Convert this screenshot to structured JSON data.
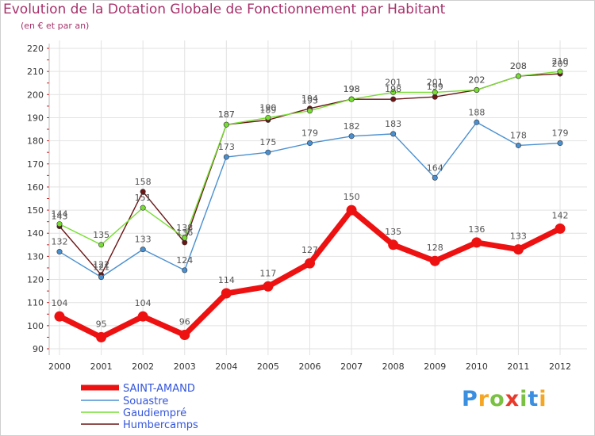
{
  "title": "Evolution de la Dotation Globale de Fonctionnement par Habitant",
  "subtitle": "(en € et par an)",
  "chart_data": {
    "type": "line",
    "x": [
      "2000",
      "2001",
      "2002",
      "2003",
      "2004",
      "2005",
      "2006",
      "2007",
      "2008",
      "2009",
      "2010",
      "2011",
      "2012"
    ],
    "ylim": [
      90,
      220
    ],
    "yticks": [
      90,
      100,
      110,
      120,
      130,
      140,
      150,
      160,
      170,
      180,
      190,
      200,
      210,
      220
    ],
    "grid": true,
    "legend_position": "bottom-left",
    "series": [
      {
        "name": "SAINT-AMAND",
        "color": "#ee1111",
        "values": [
          104,
          95,
          104,
          96,
          114,
          117,
          127,
          150,
          135,
          128,
          136,
          133,
          142
        ]
      },
      {
        "name": "Souastre",
        "color": "#4a90d0",
        "values": [
          132,
          121,
          133,
          124,
          173,
          175,
          179,
          182,
          183,
          164,
          188,
          178,
          179
        ]
      },
      {
        "name": "Gaudiempré",
        "color": "#77dd33",
        "values": [
          144,
          135,
          151,
          138,
          187,
          190,
          193,
          198,
          201,
          201,
          202,
          208,
          210
        ]
      },
      {
        "name": "Humbercamps",
        "color": "#6b1515",
        "values": [
          143,
          122,
          158,
          136,
          187,
          189,
          194,
          198,
          198,
          199,
          202,
          208,
          209
        ]
      }
    ]
  },
  "logo": {
    "letters": [
      "P",
      "r",
      "o",
      "x",
      "i",
      "t",
      "i"
    ],
    "colors": [
      "#3b8fe0",
      "#f5a623",
      "#7ac143",
      "#e8392b",
      "#7ac143",
      "#3b8fe0",
      "#f5a623"
    ]
  }
}
